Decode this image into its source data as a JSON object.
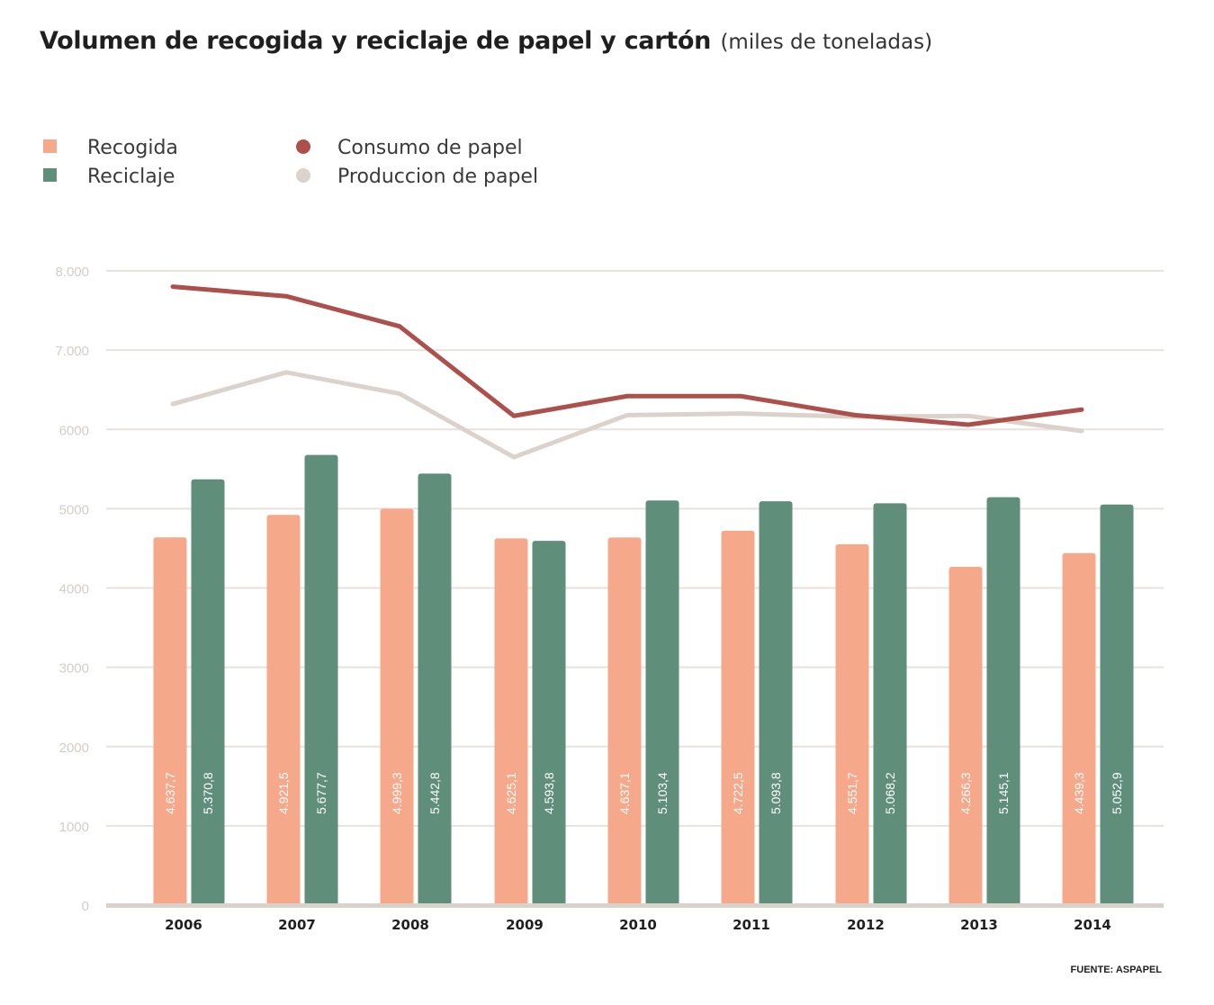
{
  "header": {
    "title": "Volumen de recogida y reciclaje de papel y cartón",
    "subtitle": "(miles de toneladas)"
  },
  "footer": {
    "source": "FUENTE: ASPAPEL"
  },
  "colors": {
    "recogida": "#f6a98a",
    "reciclaje": "#5f8e7b",
    "consumo": "#ad504c",
    "produccion": "#dcd2cc",
    "grid": "#e7e2dd",
    "baseline": "#d9d2cb"
  },
  "chart_data": {
    "type": "bar",
    "title": "Volumen de recogida y reciclaje de papel y cartón",
    "subtitle": "(miles de toneladas)",
    "categories": [
      "2006",
      "2007",
      "2008",
      "2009",
      "2010",
      "2011",
      "2012",
      "2013",
      "2014"
    ],
    "ylim": [
      0,
      8000
    ],
    "yticks": [
      0,
      1000,
      2000,
      3000,
      4000,
      5000,
      6000,
      7000,
      8000
    ],
    "ytick_labels": [
      "0",
      "1000",
      "2000",
      "3000",
      "4000",
      "5000",
      "6000",
      "7.000",
      "8.000"
    ],
    "grid": true,
    "legend_position": "top-left",
    "series": [
      {
        "name": "Recogida",
        "kind": "bar",
        "color": "#f6a98a",
        "values": [
          4637.7,
          4921.5,
          4999.3,
          4625.1,
          4637.1,
          4722.5,
          4551.7,
          4266.3,
          4439.3
        ],
        "labels": [
          "4.637,7",
          "4.921,5",
          "4.999,3",
          "4.625,1",
          "4.637,1",
          "4.722,5",
          "4.551,7",
          "4.266,3",
          "4.439,3"
        ]
      },
      {
        "name": "Reciclaje",
        "kind": "bar",
        "color": "#5f8e7b",
        "values": [
          5370.8,
          5677.7,
          5442.8,
          4593.8,
          5103.4,
          5093.8,
          5068.2,
          5145.1,
          5052.9
        ],
        "labels": [
          "5.370,8",
          "5.677,7",
          "5.442,8",
          "4.593,8",
          "5.103,4",
          "5.093,8",
          "5.068,2",
          "5.145,1",
          "5.052,9"
        ]
      },
      {
        "name": "Consumo de papel",
        "kind": "line",
        "color": "#ad504c",
        "values": [
          7800,
          7680,
          7300,
          6170,
          6420,
          6420,
          6180,
          6060,
          6250
        ]
      },
      {
        "name": "Produccion de papel",
        "kind": "line",
        "color": "#dcd2cc",
        "values": [
          6320,
          6720,
          6450,
          5650,
          6180,
          6200,
          6160,
          6170,
          5980
        ]
      }
    ]
  }
}
